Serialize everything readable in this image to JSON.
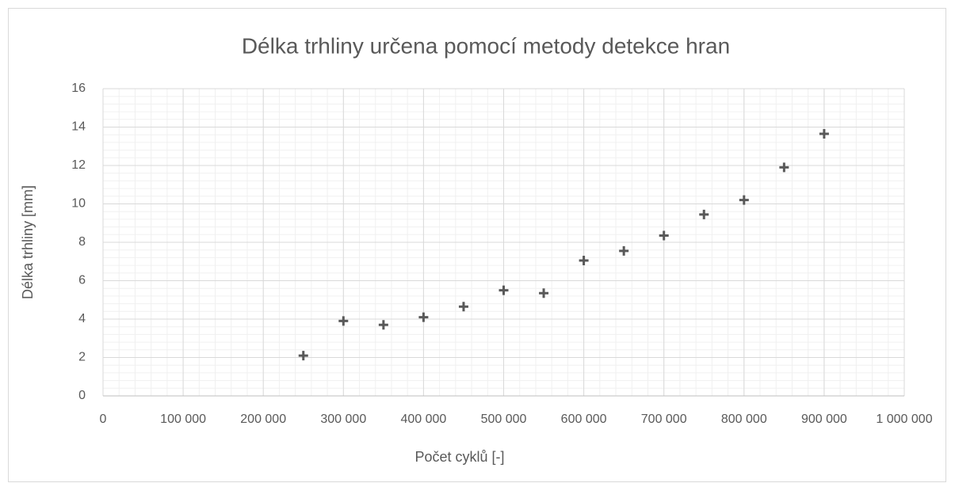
{
  "chart_data": {
    "type": "scatter",
    "title": "Délka trhliny určena pomocí metody detekce hran",
    "x_label": "Počet cyklů [-]",
    "y_label": "Délka trhliny [mm]",
    "x": [
      250000,
      300000,
      350000,
      400000,
      450000,
      500000,
      550000,
      600000,
      650000,
      700000,
      750000,
      800000,
      850000,
      900000
    ],
    "values": [
      2.1,
      3.9,
      3.7,
      4.1,
      4.65,
      5.5,
      5.35,
      7.05,
      7.55,
      8.35,
      9.45,
      10.2,
      11.9,
      13.65
    ],
    "color": "#595959",
    "marker": "plus",
    "xlim": [
      0,
      1000000
    ],
    "xticks": [
      0,
      {
        "value": 100000,
        "label": "100 000"
      },
      {
        "value": 200000,
        "label": "200 000"
      },
      {
        "value": 300000,
        "label": "300 000"
      },
      {
        "value": 400000,
        "label": "400 000"
      },
      {
        "value": 500000,
        "label": "500 000"
      },
      {
        "value": 600000,
        "label": "600 000"
      },
      {
        "value": 700000,
        "label": "700 000"
      },
      {
        "value": 800000,
        "label": "800 000"
      },
      {
        "value": 900000,
        "label": "900 000"
      },
      {
        "value": 1000000,
        "label": "1 000 000"
      }
    ],
    "ylim": [
      0,
      16
    ],
    "yticks": [
      0,
      2,
      4,
      6,
      8,
      10,
      12,
      14,
      16
    ],
    "grid": true,
    "minor_grid": {
      "x": 20000,
      "y": 0.4
    }
  }
}
